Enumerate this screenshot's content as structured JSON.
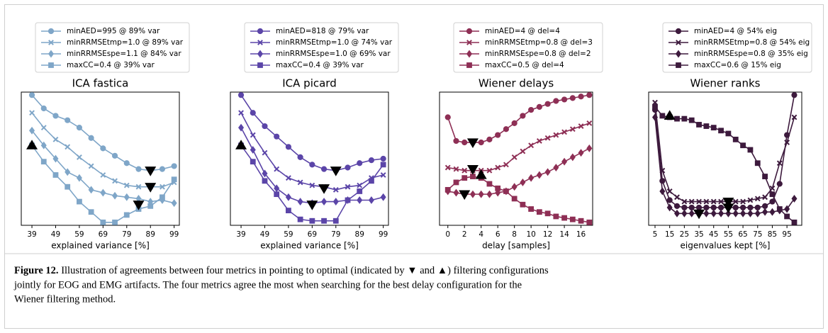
{
  "chart_data": [
    {
      "type": "line",
      "title": "ICA fastica",
      "xlabel": "explained variance [%]",
      "x": [
        39,
        44,
        49,
        54,
        59,
        64,
        69,
        74,
        79,
        84,
        89,
        94,
        99
      ],
      "xlim": [
        34.5,
        101.2
      ],
      "xticks": [
        39,
        49,
        59,
        69,
        79,
        89,
        99
      ],
      "ylim": [
        -0.01,
        0.89
      ],
      "series": [
        {
          "name": "minAED=995 @ 89% var",
          "color": "#7fa6c8",
          "marker": "circle",
          "values": [
            0.87,
            0.78,
            0.73,
            0.7,
            0.65,
            0.58,
            0.51,
            0.46,
            0.41,
            0.37,
            0.36,
            0.37,
            0.39
          ]
        },
        {
          "name": "minRRMSEtmp=1.0 @ 89% var",
          "color": "#7fa6c8",
          "marker": "x",
          "values": [
            0.75,
            0.65,
            0.57,
            0.52,
            0.45,
            0.39,
            0.33,
            0.29,
            0.26,
            0.25,
            0.25,
            0.25,
            0.28
          ]
        },
        {
          "name": "minRRMSEspe=1.1 @ 84% var",
          "color": "#7fa6c8",
          "marker": "diamond",
          "values": [
            0.63,
            0.53,
            0.44,
            0.35,
            0.31,
            0.23,
            0.21,
            0.19,
            0.18,
            0.17,
            0.15,
            0.16,
            0.14
          ]
        },
        {
          "name": "maxCC=0.4 @ 39% var",
          "color": "#7fa6c8",
          "marker": "square",
          "values": [
            0.53,
            0.42,
            0.33,
            0.25,
            0.15,
            0.08,
            0.01,
            0.01,
            0.06,
            0.1,
            0.12,
            0.18,
            0.3
          ]
        }
      ],
      "markers": [
        {
          "x": 39,
          "y": 0.53,
          "shape": "up"
        },
        {
          "x": 89,
          "y": 0.36,
          "shape": "down"
        },
        {
          "x": 89,
          "y": 0.25,
          "shape": "down"
        },
        {
          "x": 84,
          "y": 0.13,
          "shape": "down"
        }
      ]
    },
    {
      "type": "line",
      "title": "ICA picard",
      "xlabel": "explained variance [%]",
      "x": [
        39,
        44,
        49,
        54,
        59,
        64,
        69,
        74,
        79,
        84,
        89,
        94,
        99
      ],
      "xlim": [
        34.5,
        101.2
      ],
      "xticks": [
        39,
        49,
        59,
        69,
        79,
        89,
        99
      ],
      "ylim": [
        -0.01,
        0.89
      ],
      "series": [
        {
          "name": "minAED=818 @ 79% var",
          "color": "#5b45a8",
          "marker": "circle",
          "values": [
            0.87,
            0.75,
            0.66,
            0.59,
            0.52,
            0.45,
            0.4,
            0.37,
            0.36,
            0.38,
            0.41,
            0.43,
            0.44
          ]
        },
        {
          "name": "minRRMSEtmp=1.0 @ 74% var",
          "color": "#5b45a8",
          "marker": "x",
          "values": [
            0.75,
            0.6,
            0.48,
            0.37,
            0.31,
            0.28,
            0.26,
            0.25,
            0.23,
            0.25,
            0.26,
            0.31,
            0.33
          ]
        },
        {
          "name": "minRRMSEspe=1.0 @ 69% var",
          "color": "#5b45a8",
          "marker": "diamond",
          "values": [
            0.65,
            0.5,
            0.34,
            0.24,
            0.18,
            0.15,
            0.14,
            0.15,
            0.15,
            0.16,
            0.16,
            0.16,
            0.18
          ]
        },
        {
          "name": "maxCC=0.4 @ 39% var",
          "color": "#5b45a8",
          "marker": "square",
          "values": [
            0.53,
            0.42,
            0.29,
            0.2,
            0.09,
            0.03,
            0.02,
            0.02,
            0.02,
            0.16,
            0.22,
            0.29,
            0.4
          ]
        }
      ],
      "markers": [
        {
          "x": 39,
          "y": 0.53,
          "shape": "up"
        },
        {
          "x": 79,
          "y": 0.36,
          "shape": "down"
        },
        {
          "x": 74,
          "y": 0.24,
          "shape": "down"
        },
        {
          "x": 69,
          "y": 0.13,
          "shape": "down"
        }
      ]
    },
    {
      "type": "line",
      "title": "Wiener delays",
      "xlabel": "delay [samples]",
      "x": [
        0,
        1,
        2,
        3,
        4,
        5,
        6,
        7,
        8,
        9,
        10,
        11,
        12,
        13,
        14,
        15,
        16,
        17
      ],
      "xlim": [
        -1,
        17.4
      ],
      "xticks": [
        0,
        2,
        4,
        6,
        8,
        10,
        12,
        14,
        16
      ],
      "ylim": [
        -0.01,
        0.89
      ],
      "series": [
        {
          "name": "minAED=4 @ del=4",
          "color": "#8e2f55",
          "marker": "circle",
          "values": [
            0.72,
            0.56,
            0.55,
            0.55,
            0.55,
            0.57,
            0.6,
            0.64,
            0.68,
            0.73,
            0.77,
            0.79,
            0.81,
            0.83,
            0.84,
            0.85,
            0.86,
            0.87
          ]
        },
        {
          "name": "minRRMSEtmp=0.8 @ del=3",
          "color": "#8e2f55",
          "marker": "x",
          "values": [
            0.38,
            0.37,
            0.36,
            0.36,
            0.36,
            0.36,
            0.38,
            0.4,
            0.45,
            0.49,
            0.53,
            0.56,
            0.58,
            0.6,
            0.62,
            0.64,
            0.66,
            0.68
          ]
        },
        {
          "name": "minRRMSEspe=0.8 @ del=2",
          "color": "#8e2f55",
          "marker": "diamond",
          "values": [
            0.22,
            0.21,
            0.2,
            0.2,
            0.2,
            0.2,
            0.21,
            0.22,
            0.25,
            0.28,
            0.31,
            0.33,
            0.35,
            0.38,
            0.42,
            0.45,
            0.48,
            0.51
          ]
        },
        {
          "name": "maxCC=0.5 @ del=4",
          "color": "#8e2f55",
          "marker": "square",
          "values": [
            0.23,
            0.28,
            0.31,
            0.32,
            0.31,
            0.27,
            0.24,
            0.22,
            0.17,
            0.13,
            0.1,
            0.08,
            0.07,
            0.05,
            0.04,
            0.03,
            0.02,
            0.01
          ]
        }
      ],
      "markers": [
        {
          "x": 3,
          "y": 0.55,
          "shape": "down"
        },
        {
          "x": 3,
          "y": 0.37,
          "shape": "down"
        },
        {
          "x": 2,
          "y": 0.2,
          "shape": "down"
        },
        {
          "x": 4,
          "y": 0.33,
          "shape": "up"
        }
      ]
    },
    {
      "type": "line",
      "title": "Wiener ranks",
      "xlabel": "eigenvalues kept [%]",
      "x": [
        5,
        10,
        15,
        20,
        25,
        30,
        35,
        40,
        45,
        50,
        55,
        60,
        65,
        70,
        75,
        80,
        85,
        90,
        95,
        100
      ],
      "xlim": [
        0.65,
        105.1
      ],
      "xticks": [
        5,
        15,
        25,
        35,
        45,
        55,
        65,
        75,
        85,
        95
      ],
      "ylim": [
        -0.01,
        0.89
      ],
      "series": [
        {
          "name": "minAED=4 @ 54% eig",
          "color": "#3d1a3d",
          "marker": "circle",
          "values": [
            0.77,
            0.29,
            0.16,
            0.12,
            0.11,
            0.11,
            0.11,
            0.11,
            0.11,
            0.11,
            0.11,
            0.11,
            0.11,
            0.11,
            0.11,
            0.12,
            0.15,
            0.27,
            0.6,
            0.87
          ]
        },
        {
          "name": "minRRMSEtmp=0.8 @ 54% eig",
          "color": "#3d1a3d",
          "marker": "x",
          "values": [
            0.82,
            0.36,
            0.22,
            0.18,
            0.15,
            0.15,
            0.15,
            0.15,
            0.15,
            0.15,
            0.15,
            0.15,
            0.15,
            0.16,
            0.17,
            0.18,
            0.24,
            0.41,
            0.55,
            0.72
          ]
        },
        {
          "name": "minRRMSEspe=0.8 @ 35% eig",
          "color": "#3d1a3d",
          "marker": "diamond",
          "values": [
            0.72,
            0.22,
            0.11,
            0.07,
            0.07,
            0.07,
            0.07,
            0.07,
            0.07,
            0.07,
            0.07,
            0.07,
            0.07,
            0.07,
            0.07,
            0.08,
            0.08,
            0.09,
            0.1,
            0.17
          ]
        },
        {
          "name": "maxCC=0.6 @ 15% eig",
          "color": "#3d1a3d",
          "marker": "square",
          "values": [
            0.79,
            0.73,
            0.72,
            0.71,
            0.71,
            0.7,
            0.67,
            0.66,
            0.65,
            0.63,
            0.61,
            0.57,
            0.53,
            0.5,
            0.41,
            0.32,
            0.2,
            0.1,
            0.05,
            0.01
          ]
        }
      ],
      "markers": [
        {
          "x": 15,
          "y": 0.73,
          "shape": "up"
        },
        {
          "x": 55,
          "y": 0.15,
          "shape": "down"
        },
        {
          "x": 55,
          "y": 0.11,
          "shape": "down"
        },
        {
          "x": 35,
          "y": 0.07,
          "shape": "down"
        }
      ]
    }
  ],
  "caption": {
    "label": "Figure 12.",
    "lines": [
      " Illustration of agreements between four metrics in pointing to optimal (indicated by ▼ and ▲) filtering configurations",
      "jointly for EOG and EMG artifacts. The four metrics agree the most when searching for the best delay configuration for the",
      "Wiener filtering method."
    ]
  }
}
